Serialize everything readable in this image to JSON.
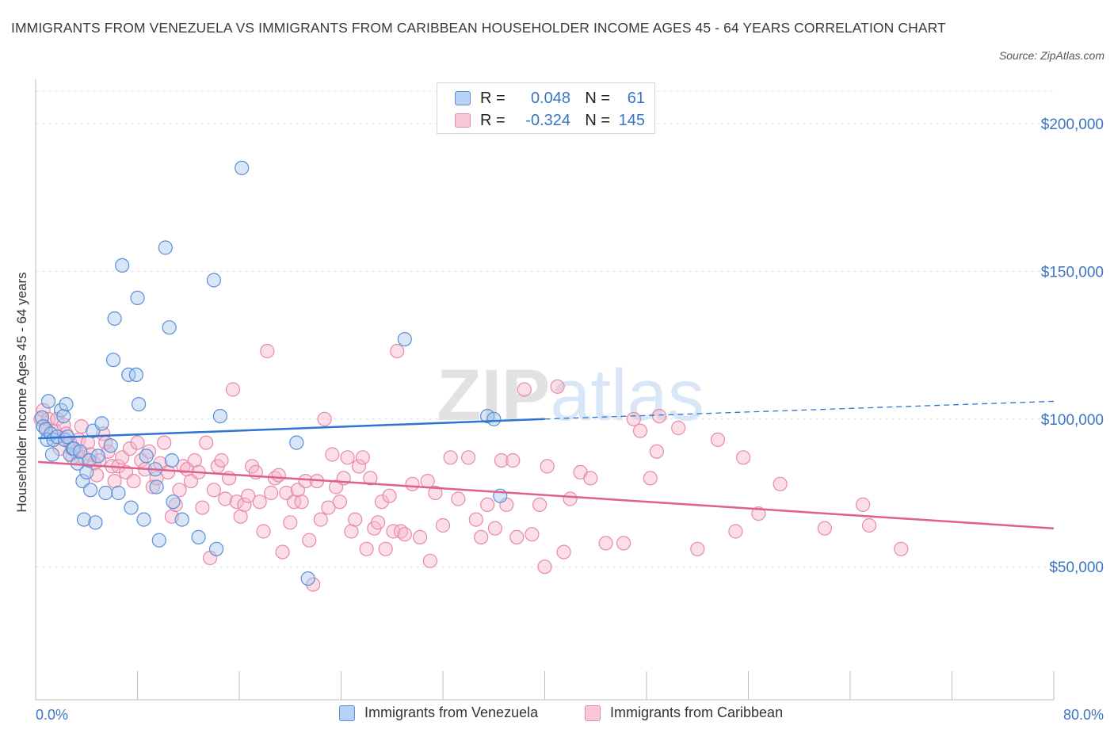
{
  "title": "IMMIGRANTS FROM VENEZUELA VS IMMIGRANTS FROM CARIBBEAN HOUSEHOLDER INCOME AGES 45 - 64 YEARS CORRELATION CHART",
  "source": "Source: ZipAtlas.com",
  "watermark": "ZIPatlas",
  "legend_top": [
    {
      "r_label": "R =",
      "r_value": "0.048",
      "n_label": "N =",
      "n_value": "61"
    },
    {
      "r_label": "R =",
      "r_value": "-0.324",
      "n_label": "N =",
      "n_value": "145"
    }
  ],
  "colors": {
    "blue_fill": "#a9c8f0",
    "blue_stroke": "#5b8fd4",
    "blue_line": "#2f74d0",
    "pink_fill": "#f7b6cb",
    "pink_stroke": "#e58aa8",
    "pink_line": "#e0608d",
    "axis_text": "#3a75c4",
    "grid": "#e2e2e2"
  },
  "chart_data": {
    "type": "scatter",
    "ylabel": "Householder Income Ages 45 - 64 years",
    "x_range": [
      0,
      80
    ],
    "y_range": [
      5000,
      215000
    ],
    "x_tick_labels": [
      "0.0%",
      "80.0%"
    ],
    "y_ticks": [
      50000,
      100000,
      150000,
      200000
    ],
    "y_tick_labels": [
      "$50,000",
      "$100,000",
      "$150,000",
      "$200,000"
    ],
    "grid": true,
    "legend_position": "bottom",
    "series": [
      {
        "name": "Immigrants from Venezuela",
        "color": "blue",
        "trend": {
          "x0": 0.2,
          "y0": 93500,
          "x1": 40,
          "y1": 100000,
          "dashed_to_x": 80,
          "dashed_to_y": 106000
        },
        "points": [
          [
            0.5,
            100500
          ],
          [
            0.6,
            97500
          ],
          [
            0.8,
            96500
          ],
          [
            0.9,
            93000
          ],
          [
            1.0,
            106000
          ],
          [
            1.2,
            95000
          ],
          [
            1.3,
            88000
          ],
          [
            1.4,
            93000
          ],
          [
            1.7,
            94000
          ],
          [
            2.0,
            103000
          ],
          [
            2.2,
            101000
          ],
          [
            2.3,
            93000
          ],
          [
            2.4,
            105000
          ],
          [
            2.5,
            94000
          ],
          [
            2.7,
            88000
          ],
          [
            2.9,
            90000
          ],
          [
            3.0,
            90000
          ],
          [
            3.3,
            85000
          ],
          [
            3.5,
            89000
          ],
          [
            3.7,
            79000
          ],
          [
            3.8,
            66000
          ],
          [
            4.0,
            82000
          ],
          [
            4.2,
            86000
          ],
          [
            4.3,
            76000
          ],
          [
            4.5,
            96000
          ],
          [
            4.7,
            65000
          ],
          [
            4.9,
            87500
          ],
          [
            5.2,
            98500
          ],
          [
            5.5,
            75000
          ],
          [
            5.9,
            91000
          ],
          [
            6.1,
            120000
          ],
          [
            6.2,
            134000
          ],
          [
            6.5,
            75000
          ],
          [
            6.8,
            152000
          ],
          [
            7.3,
            115000
          ],
          [
            7.5,
            70000
          ],
          [
            7.9,
            115000
          ],
          [
            8.0,
            141000
          ],
          [
            8.1,
            105000
          ],
          [
            8.5,
            66000
          ],
          [
            8.7,
            87500
          ],
          [
            9.4,
            83000
          ],
          [
            9.5,
            77000
          ],
          [
            9.7,
            59000
          ],
          [
            10.2,
            158000
          ],
          [
            10.5,
            131000
          ],
          [
            10.7,
            86000
          ],
          [
            10.8,
            72000
          ],
          [
            11.5,
            66000
          ],
          [
            12.8,
            60000
          ],
          [
            14.0,
            147000
          ],
          [
            14.2,
            56000
          ],
          [
            14.5,
            101000
          ],
          [
            16.2,
            185000
          ],
          [
            20.5,
            92000
          ],
          [
            21.4,
            46000
          ],
          [
            29.0,
            127000
          ],
          [
            35.5,
            101000
          ],
          [
            36.0,
            100000
          ],
          [
            36.5,
            74000
          ]
        ]
      },
      {
        "name": "Immigrants from Caribbean",
        "color": "pink",
        "trend": {
          "x0": 0.2,
          "y0": 85500,
          "x1": 80,
          "y1": 63000
        },
        "points": [
          [
            0.4,
            100000
          ],
          [
            0.6,
            103000
          ],
          [
            0.8,
            97000
          ],
          [
            1.0,
            100000
          ],
          [
            1.2,
            95000
          ],
          [
            1.5,
            96000
          ],
          [
            1.7,
            100000
          ],
          [
            1.9,
            90000
          ],
          [
            2.2,
            98000
          ],
          [
            2.4,
            95000
          ],
          [
            2.7,
            92000
          ],
          [
            2.9,
            87000
          ],
          [
            3.2,
            89000
          ],
          [
            3.4,
            93000
          ],
          [
            3.6,
            97500
          ],
          [
            3.8,
            87000
          ],
          [
            4.1,
            92000
          ],
          [
            4.3,
            88000
          ],
          [
            4.6,
            85000
          ],
          [
            4.8,
            81000
          ],
          [
            5.0,
            86000
          ],
          [
            5.3,
            95000
          ],
          [
            5.5,
            92000
          ],
          [
            5.7,
            89000
          ],
          [
            6.0,
            84000
          ],
          [
            6.2,
            79000
          ],
          [
            6.5,
            84000
          ],
          [
            6.8,
            87000
          ],
          [
            7.1,
            82000
          ],
          [
            7.4,
            90000
          ],
          [
            7.7,
            79000
          ],
          [
            8.0,
            92000
          ],
          [
            8.3,
            86000
          ],
          [
            8.6,
            83000
          ],
          [
            8.9,
            89000
          ],
          [
            9.2,
            77000
          ],
          [
            9.5,
            80000
          ],
          [
            9.8,
            85000
          ],
          [
            10.1,
            92000
          ],
          [
            10.4,
            82000
          ],
          [
            10.7,
            67000
          ],
          [
            11.0,
            71000
          ],
          [
            11.3,
            76000
          ],
          [
            11.6,
            84000
          ],
          [
            11.9,
            83000
          ],
          [
            12.2,
            79000
          ],
          [
            12.5,
            86000
          ],
          [
            12.8,
            82000
          ],
          [
            13.1,
            70000
          ],
          [
            13.4,
            92000
          ],
          [
            13.7,
            53000
          ],
          [
            14.0,
            76000
          ],
          [
            14.3,
            84000
          ],
          [
            14.6,
            86000
          ],
          [
            14.9,
            73000
          ],
          [
            15.2,
            80000
          ],
          [
            15.5,
            110000
          ],
          [
            15.8,
            72000
          ],
          [
            16.1,
            67000
          ],
          [
            16.4,
            71000
          ],
          [
            16.7,
            74000
          ],
          [
            17.0,
            84000
          ],
          [
            17.3,
            82000
          ],
          [
            17.6,
            72000
          ],
          [
            17.9,
            62000
          ],
          [
            18.2,
            123000
          ],
          [
            18.5,
            75000
          ],
          [
            18.8,
            80000
          ],
          [
            19.1,
            81000
          ],
          [
            19.4,
            55000
          ],
          [
            19.7,
            75000
          ],
          [
            20.0,
            65000
          ],
          [
            20.3,
            72000
          ],
          [
            20.6,
            76000
          ],
          [
            20.9,
            72000
          ],
          [
            21.2,
            79000
          ],
          [
            21.5,
            59000
          ],
          [
            21.8,
            44000
          ],
          [
            22.1,
            79000
          ],
          [
            22.4,
            66000
          ],
          [
            22.7,
            100000
          ],
          [
            23.0,
            70000
          ],
          [
            23.3,
            88000
          ],
          [
            23.6,
            77000
          ],
          [
            23.9,
            72000
          ],
          [
            24.2,
            80000
          ],
          [
            24.5,
            87000
          ],
          [
            24.8,
            62000
          ],
          [
            25.1,
            66000
          ],
          [
            25.4,
            84000
          ],
          [
            25.7,
            87000
          ],
          [
            26.0,
            56000
          ],
          [
            26.3,
            80000
          ],
          [
            26.6,
            63000
          ],
          [
            26.9,
            65000
          ],
          [
            27.2,
            72000
          ],
          [
            27.5,
            56000
          ],
          [
            27.8,
            74000
          ],
          [
            28.1,
            62000
          ],
          [
            28.4,
            123000
          ],
          [
            28.7,
            62000
          ],
          [
            29.0,
            61000
          ],
          [
            29.6,
            78000
          ],
          [
            30.2,
            60000
          ],
          [
            30.8,
            79000
          ],
          [
            31.0,
            52000
          ],
          [
            31.4,
            75000
          ],
          [
            32.0,
            64000
          ],
          [
            32.6,
            87000
          ],
          [
            33.2,
            73000
          ],
          [
            34.0,
            87000
          ],
          [
            34.6,
            66000
          ],
          [
            35.0,
            60000
          ],
          [
            35.5,
            71000
          ],
          [
            36.1,
            63000
          ],
          [
            36.6,
            86000
          ],
          [
            37.0,
            71000
          ],
          [
            37.5,
            86000
          ],
          [
            37.8,
            60000
          ],
          [
            38.4,
            110000
          ],
          [
            39.0,
            61000
          ],
          [
            39.6,
            71000
          ],
          [
            40.0,
            50000
          ],
          [
            40.2,
            84000
          ],
          [
            41.0,
            111000
          ],
          [
            41.5,
            55000
          ],
          [
            42.0,
            73000
          ],
          [
            42.8,
            82000
          ],
          [
            43.6,
            80000
          ],
          [
            44.8,
            58000
          ],
          [
            46.2,
            58000
          ],
          [
            47.0,
            100000
          ],
          [
            47.5,
            96000
          ],
          [
            48.3,
            80000
          ],
          [
            48.8,
            89000
          ],
          [
            49.0,
            101000
          ],
          [
            50.5,
            97000
          ],
          [
            52.0,
            56000
          ],
          [
            53.6,
            93000
          ],
          [
            55.0,
            62000
          ],
          [
            55.6,
            87000
          ],
          [
            56.8,
            68000
          ],
          [
            58.5,
            78000
          ],
          [
            62.0,
            63000
          ],
          [
            65.0,
            71000
          ],
          [
            65.5,
            64000
          ],
          [
            68.0,
            56000
          ]
        ]
      }
    ]
  }
}
